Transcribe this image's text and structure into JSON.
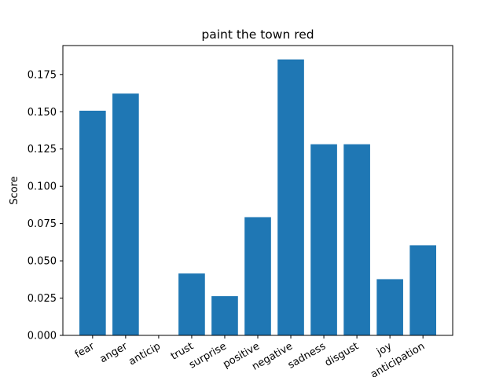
{
  "chart_data": {
    "type": "bar",
    "title": "paint the town red",
    "xlabel": "",
    "ylabel": "Score",
    "categories": [
      "fear",
      "anger",
      "anticip",
      "trust",
      "surprise",
      "positive",
      "negative",
      "sadness",
      "disgust",
      "joy",
      "anticipation"
    ],
    "values": [
      0.1507,
      0.1622,
      0.0,
      0.0415,
      0.0263,
      0.0793,
      0.1851,
      0.1282,
      0.1282,
      0.0377,
      0.0604
    ],
    "ylim": [
      0,
      0.1944
    ],
    "yticks": [
      0.0,
      0.025,
      0.05,
      0.075,
      0.1,
      0.125,
      0.15,
      0.175
    ],
    "ytick_labels": [
      "0.000",
      "0.025",
      "0.050",
      "0.075",
      "0.100",
      "0.125",
      "0.150",
      "0.175"
    ],
    "bar_color": "#1f77b4",
    "grid": false
  }
}
